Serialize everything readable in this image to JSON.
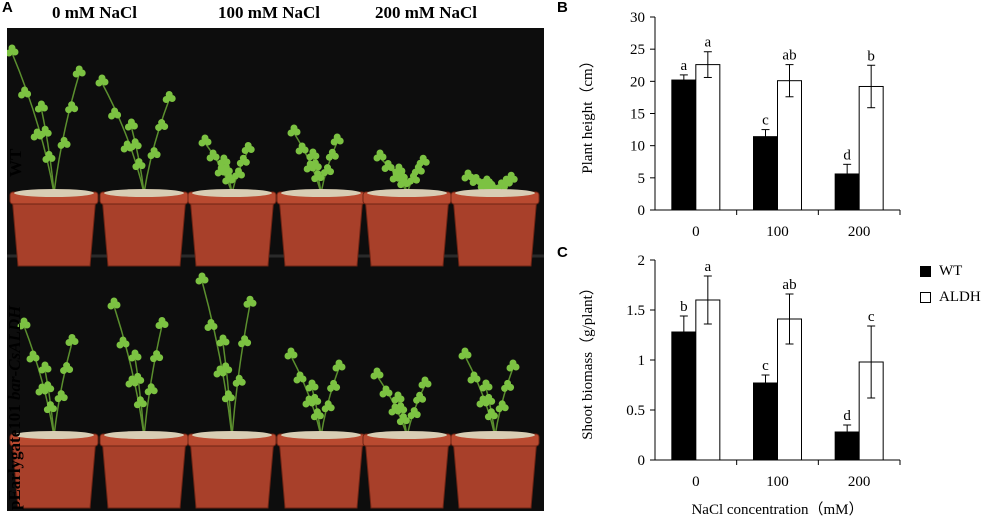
{
  "panel_labels": {
    "a": "A",
    "b": "B",
    "c": "C"
  },
  "photo": {
    "conditions": [
      "0 mM NaCl",
      "100 mM NaCl",
      "200 mM NaCl"
    ],
    "row_top": "WT",
    "row_bottom_plain": "pEarlygate101 ",
    "row_bottom_italic": "bar-CsALDH",
    "colors": {
      "background": "#0d0d0d",
      "pot": "#a8402a",
      "soil": "#d8cdb4",
      "leaf": "#7cc242"
    }
  },
  "legend": [
    {
      "name": "WT",
      "color": "#000000"
    },
    {
      "name": "ALDH",
      "color": "#ffffff"
    }
  ],
  "chart_data": [
    {
      "type": "bar",
      "panel": "B",
      "categories": [
        "0",
        "100",
        "200"
      ],
      "series": [
        {
          "name": "WT",
          "color": "#000000",
          "values": [
            20.2,
            11.4,
            5.6
          ],
          "errors": [
            0.8,
            1.1,
            1.5
          ],
          "labels": [
            "a",
            "c",
            "d"
          ]
        },
        {
          "name": "ALDH",
          "color": "#ffffff",
          "values": [
            22.6,
            20.1,
            19.2
          ],
          "errors": [
            2.0,
            2.5,
            3.3
          ],
          "labels": [
            "a",
            "ab",
            "b"
          ]
        }
      ],
      "ylabel": "Plant height（cm）",
      "xlabel": "",
      "ylim": [
        0,
        30
      ],
      "yticks": [
        "0",
        "5",
        "10",
        "15",
        "20",
        "25",
        "30"
      ]
    },
    {
      "type": "bar",
      "panel": "C",
      "categories": [
        "0",
        "100",
        "200"
      ],
      "series": [
        {
          "name": "WT",
          "color": "#000000",
          "values": [
            1.28,
            0.77,
            0.28
          ],
          "errors": [
            0.16,
            0.08,
            0.07
          ],
          "labels": [
            "b",
            "c",
            "d"
          ]
        },
        {
          "name": "ALDH",
          "color": "#ffffff",
          "values": [
            1.6,
            1.41,
            0.98
          ],
          "errors": [
            0.24,
            0.25,
            0.36
          ],
          "labels": [
            "a",
            "ab",
            "c"
          ]
        }
      ],
      "ylabel": "Shoot biomass（g/plant）",
      "xlabel": "NaCl concentration（mM）",
      "ylim": [
        0,
        2
      ],
      "yticks": [
        "0",
        "0.5",
        "1",
        "1.5",
        "2"
      ]
    }
  ]
}
